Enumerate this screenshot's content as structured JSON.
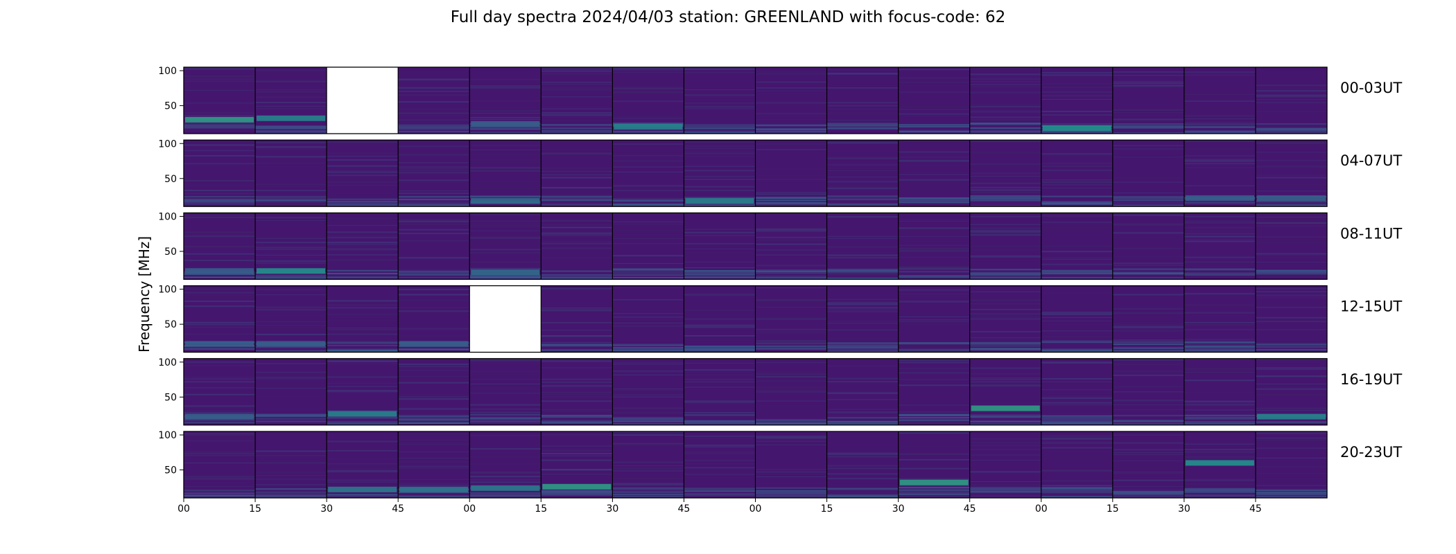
{
  "chart_data": {
    "type": "heatmap",
    "title": "Full day spectra 2024/04/03 station: GREENLAND with focus-code: 62",
    "xlabel": "",
    "ylabel": "Frequency [MHz]",
    "colormap": "viridis",
    "background_color": "#45166e",
    "y_ticks": [
      100,
      50
    ],
    "ylim": [
      10,
      105
    ],
    "x_tick_labels": [
      "00",
      "15",
      "30",
      "45",
      "00",
      "15",
      "30",
      "45",
      "00",
      "15",
      "30",
      "45",
      "00",
      "15",
      "30",
      "45"
    ],
    "panels_per_row": 16,
    "rows": [
      {
        "label": "00-03UT",
        "missing": [
          2
        ],
        "bright_bands": [
          [
            0,
            30,
            0.55
          ],
          [
            1,
            32,
            0.45
          ],
          [
            6,
            20,
            0.45
          ],
          [
            12,
            18,
            0.5
          ],
          [
            4,
            24,
            0.3
          ]
        ]
      },
      {
        "label": "04-07UT",
        "missing": [],
        "bright_bands": [
          [
            7,
            18,
            0.45
          ],
          [
            4,
            18,
            0.35
          ],
          [
            14,
            22,
            0.3
          ],
          [
            15,
            22,
            0.3
          ]
        ]
      },
      {
        "label": "08-11UT",
        "missing": [],
        "bright_bands": [
          [
            1,
            22,
            0.5
          ],
          [
            0,
            22,
            0.3
          ],
          [
            4,
            20,
            0.35
          ]
        ]
      },
      {
        "label": "12-15UT",
        "missing": [
          4
        ],
        "bright_bands": [
          [
            0,
            22,
            0.3
          ],
          [
            1,
            22,
            0.3
          ],
          [
            3,
            22,
            0.3
          ]
        ]
      },
      {
        "label": "16-19UT",
        "missing": [],
        "bright_bands": [
          [
            2,
            26,
            0.45
          ],
          [
            11,
            34,
            0.55
          ],
          [
            15,
            22,
            0.45
          ],
          [
            0,
            22,
            0.3
          ]
        ]
      },
      {
        "label": "20-23UT",
        "missing": [],
        "bright_bands": [
          [
            5,
            26,
            0.55
          ],
          [
            10,
            32,
            0.55
          ],
          [
            2,
            22,
            0.4
          ],
          [
            3,
            22,
            0.4
          ],
          [
            4,
            24,
            0.4
          ],
          [
            14,
            60,
            0.5
          ]
        ]
      }
    ]
  }
}
